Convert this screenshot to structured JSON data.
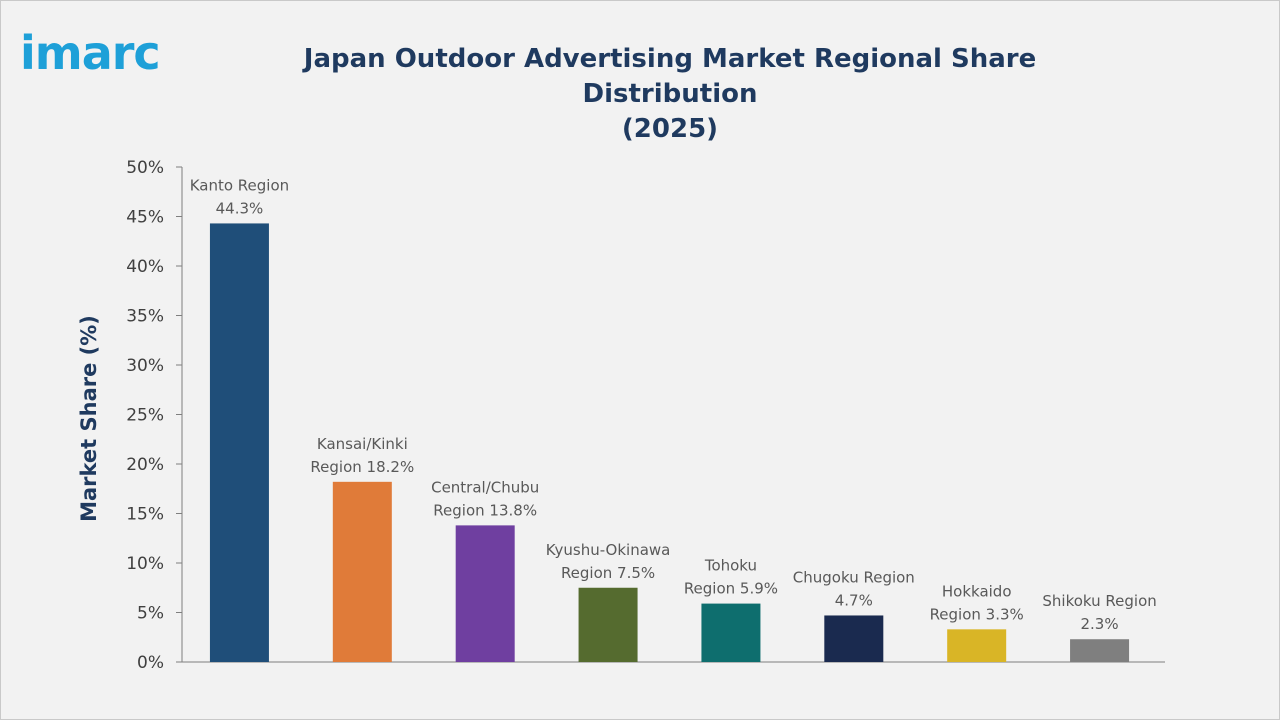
{
  "brand": {
    "logo_text": "imarc",
    "logo_color": "#1ea0d8"
  },
  "chart_data": {
    "type": "bar",
    "title": "Japan Outdoor Advertising Market Regional Share Distribution (2025)",
    "title_lines": [
      "Japan Outdoor Advertising Market Regional Share Distribution",
      "(2025)"
    ],
    "xlabel": "",
    "ylabel": "Market Share (%)",
    "ylim": [
      0,
      50
    ],
    "yticks": [
      0,
      5,
      10,
      15,
      20,
      25,
      30,
      35,
      40,
      45,
      50
    ],
    "ytick_labels": [
      "0%",
      "5%",
      "10%",
      "15%",
      "20%",
      "25%",
      "30%",
      "35%",
      "40%",
      "45%",
      "50%"
    ],
    "grid": false,
    "legend": "none",
    "categories": [
      "Kanto Region",
      "Kansai/Kinki Region",
      "Central/Chubu Region",
      "Kyushu-Okinawa Region",
      "Tohoku Region",
      "Chugoku Region",
      "Hokkaido Region",
      "Shikoku Region"
    ],
    "values": [
      44.3,
      18.2,
      13.8,
      7.5,
      5.9,
      4.7,
      3.3,
      2.3
    ],
    "data_labels": [
      [
        "Kanto Region",
        "44.3%"
      ],
      [
        "Kansai/Kinki",
        "Region 18.2%"
      ],
      [
        "Central/Chubu",
        "Region 13.8%"
      ],
      [
        "Kyushu-Okinawa",
        "Region 7.5%"
      ],
      [
        "Tohoku",
        "Region 5.9%"
      ],
      [
        "Chugoku Region",
        "4.7%"
      ],
      [
        "Hokkaido",
        "Region 3.3%"
      ],
      [
        "Shikoku Region",
        "2.3%"
      ]
    ],
    "colors": [
      "#1f4e79",
      "#e07b39",
      "#6f3fa0",
      "#556b2f",
      "#0e6e6e",
      "#1a2a4f",
      "#d9b526",
      "#7f7f7f"
    ]
  }
}
